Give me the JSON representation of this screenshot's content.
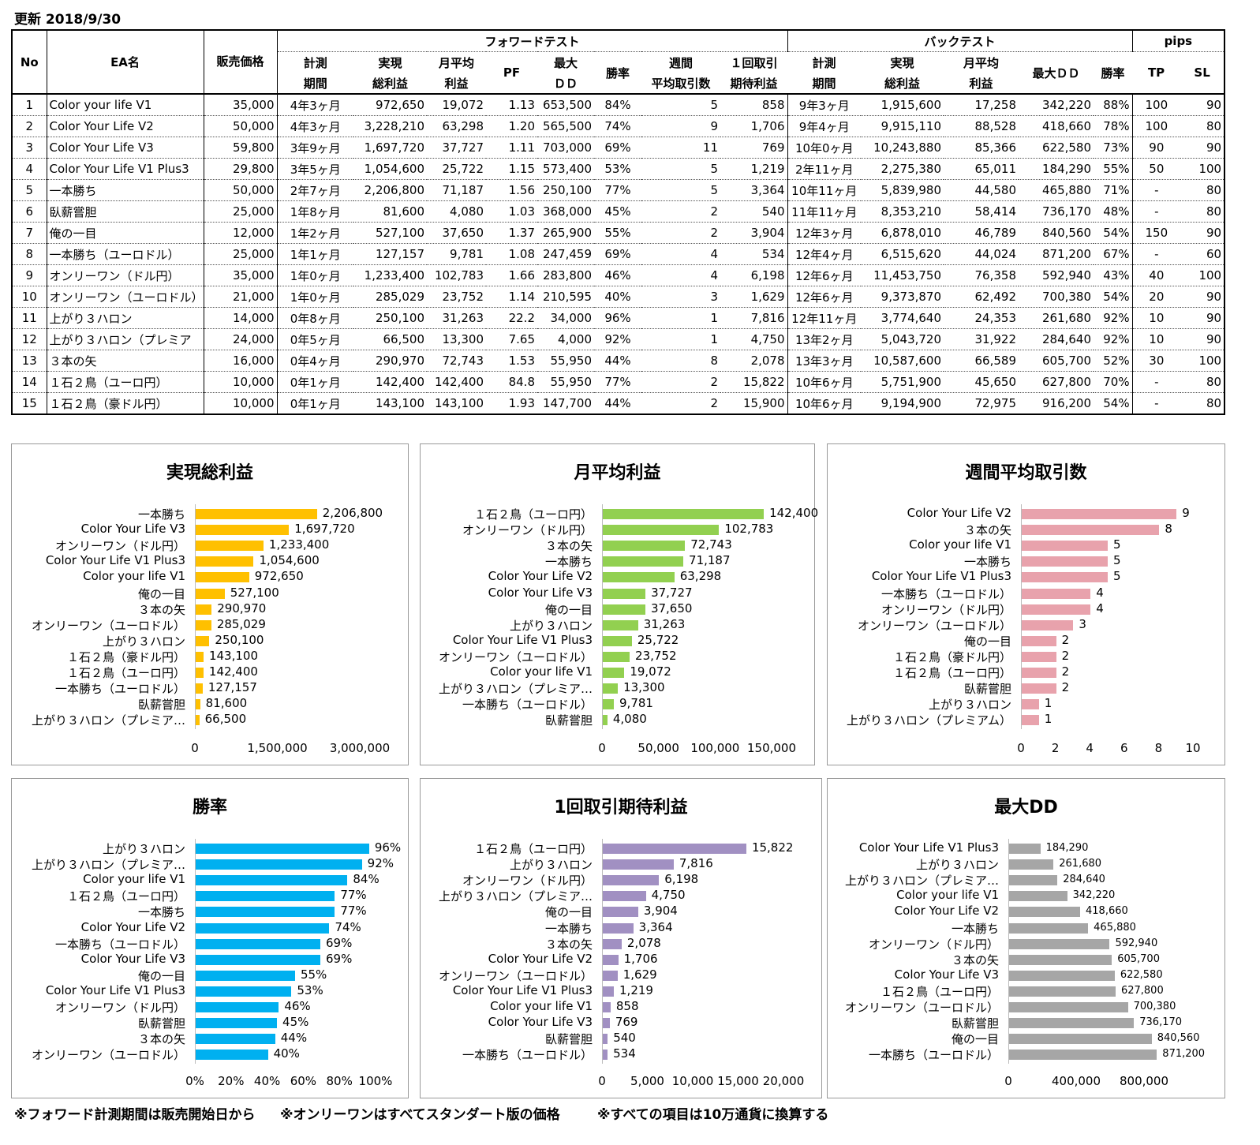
{
  "updated": "更新  2018/9/30",
  "table": {
    "group_headers": {
      "forward": "フォワードテスト",
      "back": "バックテスト",
      "pips": "pips"
    },
    "headers": {
      "no": "No",
      "ea": "EA名",
      "price": "販売価格",
      "f_period": [
        "計測",
        "期間"
      ],
      "f_total": [
        "実現",
        "総利益"
      ],
      "f_month": [
        "月平均",
        "利益"
      ],
      "f_pf": "PF",
      "f_dd": [
        "最大",
        "ＤＤ"
      ],
      "f_win": "勝率",
      "f_week": [
        "週間",
        "平均取引数"
      ],
      "f_exp": [
        "１回取引",
        "期待利益"
      ],
      "b_period": [
        "計測",
        "期間"
      ],
      "b_total": [
        "実現",
        "総利益"
      ],
      "b_month": [
        "月平均",
        "利益"
      ],
      "b_dd": "最大ＤＤ",
      "b_win": "勝率",
      "tp": "TP",
      "sl": "SL"
    },
    "rows": [
      [
        "1",
        "Color your life V1",
        "35,000",
        "4年3ヶ月",
        "972,650",
        "19,072",
        "1.13",
        "653,500",
        "84%",
        "5",
        "858",
        "9年3ヶ月",
        "1,915,600",
        "17,258",
        "342,220",
        "88%",
        "100",
        "90"
      ],
      [
        "2",
        "Color Your Life V2",
        "50,000",
        "4年3ヶ月",
        "3,228,210",
        "63,298",
        "1.20",
        "565,500",
        "74%",
        "9",
        "1,706",
        "9年4ヶ月",
        "9,915,110",
        "88,528",
        "418,660",
        "78%",
        "100",
        "80"
      ],
      [
        "3",
        "Color Your Life V3",
        "59,800",
        "3年9ヶ月",
        "1,697,720",
        "37,727",
        "1.11",
        "703,000",
        "69%",
        "11",
        "769",
        "10年0ヶ月",
        "10,243,880",
        "85,366",
        "622,580",
        "73%",
        "90",
        "90"
      ],
      [
        "4",
        "Color Your Life V1 Plus3",
        "29,800",
        "3年5ヶ月",
        "1,054,600",
        "25,722",
        "1.15",
        "573,400",
        "53%",
        "5",
        "1,219",
        "2年11ヶ月",
        "2,275,380",
        "65,011",
        "184,290",
        "55%",
        "50",
        "100"
      ],
      [
        "5",
        "一本勝ち",
        "50,000",
        "2年7ヶ月",
        "2,206,800",
        "71,187",
        "1.56",
        "250,100",
        "77%",
        "5",
        "3,364",
        "10年11ヶ月",
        "5,839,980",
        "44,580",
        "465,880",
        "71%",
        "-",
        "80"
      ],
      [
        "6",
        "臥薪嘗胆",
        "25,000",
        "1年8ヶ月",
        "81,600",
        "4,080",
        "1.03",
        "368,000",
        "45%",
        "2",
        "540",
        "11年11ヶ月",
        "8,353,210",
        "58,414",
        "736,170",
        "48%",
        "-",
        "80"
      ],
      [
        "7",
        "俺の一目",
        "12,000",
        "1年2ヶ月",
        "527,100",
        "37,650",
        "1.37",
        "265,900",
        "55%",
        "2",
        "3,904",
        "12年3ヶ月",
        "6,878,010",
        "46,789",
        "840,560",
        "54%",
        "150",
        "90"
      ],
      [
        "8",
        "一本勝ち（ユーロドル）",
        "25,000",
        "1年1ヶ月",
        "127,157",
        "9,781",
        "1.08",
        "247,459",
        "69%",
        "4",
        "534",
        "12年4ヶ月",
        "6,515,620",
        "44,024",
        "871,200",
        "67%",
        "-",
        "60"
      ],
      [
        "9",
        "オンリーワン（ドル円）",
        "35,000",
        "1年0ヶ月",
        "1,233,400",
        "102,783",
        "1.66",
        "283,800",
        "46%",
        "4",
        "6,198",
        "12年6ヶ月",
        "11,453,750",
        "76,358",
        "592,940",
        "43%",
        "40",
        "100"
      ],
      [
        "10",
        "オンリーワン（ユーロドル）",
        "21,000",
        "1年0ヶ月",
        "285,029",
        "23,752",
        "1.14",
        "210,595",
        "40%",
        "3",
        "1,629",
        "12年6ヶ月",
        "9,373,870",
        "62,492",
        "700,380",
        "54%",
        "20",
        "90"
      ],
      [
        "11",
        "上がり３ハロン",
        "14,000",
        "0年8ヶ月",
        "250,100",
        "31,263",
        "22.2",
        "34,000",
        "96%",
        "1",
        "7,816",
        "12年11ヶ月",
        "3,774,640",
        "24,353",
        "261,680",
        "92%",
        "10",
        "90"
      ],
      [
        "12",
        "上がり３ハロン（プレミア",
        "24,000",
        "0年5ヶ月",
        "66,500",
        "13,300",
        "7.65",
        "4,000",
        "92%",
        "1",
        "4,750",
        "13年2ヶ月",
        "5,043,720",
        "31,922",
        "284,640",
        "92%",
        "10",
        "90"
      ],
      [
        "13",
        "３本の矢",
        "16,000",
        "0年4ヶ月",
        "290,970",
        "72,743",
        "1.53",
        "55,950",
        "44%",
        "8",
        "2,078",
        "13年3ヶ月",
        "10,587,600",
        "66,589",
        "605,700",
        "52%",
        "30",
        "100"
      ],
      [
        "14",
        "１石２鳥（ユーロ円）",
        "10,000",
        "0年1ヶ月",
        "142,400",
        "142,400",
        "84.8",
        "55,950",
        "77%",
        "2",
        "15,822",
        "10年6ヶ月",
        "5,751,900",
        "45,650",
        "627,800",
        "70%",
        "-",
        "80"
      ],
      [
        "15",
        "１石２鳥（豪ドル円）",
        "10,000",
        "0年1ヶ月",
        "143,100",
        "143,100",
        "1.93",
        "147,700",
        "44%",
        "2",
        "15,900",
        "10年6ヶ月",
        "9,194,900",
        "72,975",
        "916,200",
        "54%",
        "-",
        "80"
      ]
    ]
  },
  "chart_data": [
    {
      "type": "bar",
      "orientation": "horizontal",
      "title": "実現総利益",
      "color": "#FFC000",
      "xlim": [
        0,
        3000000
      ],
      "ticks": [
        "0",
        "1,500,000",
        "3,000,000"
      ],
      "categories": [
        "一本勝ち",
        "Color Your Life V3",
        "オンリーワン（ドル円）",
        "Color Your Life V1 Plus3",
        "Color your life V1",
        "俺の一目",
        "３本の矢",
        "オンリーワン（ユーロドル）",
        "上がり３ハロン",
        "１石２鳥（豪ドル円）",
        "１石２鳥（ユーロ円）",
        "一本勝ち（ユーロドル）",
        "臥薪嘗胆",
        "上がり３ハロン（プレミア…"
      ],
      "values": [
        2206800,
        1697720,
        1233400,
        1054600,
        972650,
        527100,
        290970,
        285029,
        250100,
        143100,
        142400,
        127157,
        81600,
        66500
      ],
      "labels": [
        "2,206,800",
        "1,697,720",
        "1,233,400",
        "1,054,600",
        "972,650",
        "527,100",
        "290,970",
        "285,029",
        "250,100",
        "143,100",
        "142,400",
        "127,157",
        "81,600",
        "66,500"
      ]
    },
    {
      "type": "bar",
      "orientation": "horizontal",
      "title": "月平均利益",
      "color": "#92D050",
      "xlim": [
        0,
        150000
      ],
      "ticks": [
        "0",
        "50,000",
        "100,000",
        "150,000"
      ],
      "categories": [
        "１石２鳥（ユーロ円）",
        "オンリーワン（ドル円）",
        "３本の矢",
        "一本勝ち",
        "Color Your Life V2",
        "Color Your Life V3",
        "俺の一目",
        "上がり３ハロン",
        "Color Your Life V1 Plus3",
        "オンリーワン（ユーロドル）",
        "Color your life V1",
        "上がり３ハロン（プレミア…",
        "一本勝ち（ユーロドル）",
        "臥薪嘗胆"
      ],
      "values": [
        142400,
        102783,
        72743,
        71187,
        63298,
        37727,
        37650,
        31263,
        25722,
        23752,
        19072,
        13300,
        9781,
        4080
      ],
      "labels": [
        "142,400",
        "102,783",
        "72,743",
        "71,187",
        "63,298",
        "37,727",
        "37,650",
        "31,263",
        "25,722",
        "23,752",
        "19,072",
        "13,300",
        "9,781",
        "4,080"
      ]
    },
    {
      "type": "bar",
      "orientation": "horizontal",
      "title": "週間平均取引数",
      "color": "#E8A2AC",
      "xlim": [
        0,
        10
      ],
      "ticks": [
        "0",
        "2",
        "4",
        "6",
        "8",
        "10"
      ],
      "categories": [
        "Color Your Life V2",
        "３本の矢",
        "Color your life V1",
        "一本勝ち",
        "Color Your Life V1 Plus3",
        "一本勝ち（ユーロドル）",
        "オンリーワン（ドル円）",
        "オンリーワン（ユーロドル）",
        "俺の一目",
        "１石２鳥（豪ドル円）",
        "１石２鳥（ユーロ円）",
        "臥薪嘗胆",
        "上がり３ハロン",
        "上がり３ハロン（プレミアム）"
      ],
      "values": [
        9,
        8,
        5,
        5,
        5,
        4,
        4,
        3,
        2,
        2,
        2,
        2,
        1,
        1
      ],
      "labels": [
        "9",
        "8",
        "5",
        "5",
        "5",
        "4",
        "4",
        "3",
        "2",
        "2",
        "2",
        "2",
        "1",
        "1"
      ]
    },
    {
      "type": "bar",
      "orientation": "horizontal",
      "title": "勝率",
      "color": "#00B0F0",
      "xlim": [
        0,
        100
      ],
      "ticks": [
        "0%",
        "20%",
        "40%",
        "60%",
        "80%",
        "100%"
      ],
      "categories": [
        "上がり３ハロン",
        "上がり３ハロン（プレミア…",
        "Color your life V1",
        "１石２鳥（ユーロ円）",
        "一本勝ち",
        "Color Your Life V2",
        "一本勝ち（ユーロドル）",
        "Color Your Life V3",
        "俺の一目",
        "Color Your Life V1 Plus3",
        "オンリーワン（ドル円）",
        "臥薪嘗胆",
        "３本の矢",
        "オンリーワン（ユーロドル）"
      ],
      "values": [
        96,
        92,
        84,
        77,
        77,
        74,
        69,
        69,
        55,
        53,
        46,
        45,
        44,
        40
      ],
      "labels": [
        "96%",
        "92%",
        "84%",
        "77%",
        "77%",
        "74%",
        "69%",
        "69%",
        "55%",
        "53%",
        "46%",
        "45%",
        "44%",
        "40%"
      ]
    },
    {
      "type": "bar",
      "orientation": "horizontal",
      "title": "1回取引期待利益",
      "color": "#A190C2",
      "xlim": [
        0,
        20000
      ],
      "ticks": [
        "0",
        "5,000",
        "10,000",
        "15,000",
        "20,000"
      ],
      "categories": [
        "１石２鳥（ユーロ円）",
        "上がり３ハロン",
        "オンリーワン（ドル円）",
        "上がり３ハロン（プレミア…",
        "俺の一目",
        "一本勝ち",
        "３本の矢",
        "Color Your Life V2",
        "オンリーワン（ユーロドル）",
        "Color Your Life V1 Plus3",
        "Color your life V1",
        "Color Your Life V3",
        "臥薪嘗胆",
        "一本勝ち（ユーロドル）"
      ],
      "values": [
        15822,
        7816,
        6198,
        4750,
        3904,
        3364,
        2078,
        1706,
        1629,
        1219,
        858,
        769,
        540,
        534
      ],
      "labels": [
        "15,822",
        "7,816",
        "6,198",
        "4,750",
        "3,904",
        "3,364",
        "2,078",
        "1,706",
        "1,629",
        "1,219",
        "858",
        "769",
        "540",
        "534"
      ]
    },
    {
      "type": "bar",
      "orientation": "horizontal",
      "title": "最大DD",
      "color": "#A6A6A6",
      "xlim": [
        0,
        1000000
      ],
      "ticks": [
        "0",
        "400,000",
        "800,000"
      ],
      "categories": [
        "Color Your Life V1 Plus3",
        "上がり３ハロン",
        "上がり３ハロン（プレミア…",
        "Color your life V1",
        "Color Your Life V2",
        "一本勝ち",
        "オンリーワン（ドル円）",
        "３本の矢",
        "Color Your Life V3",
        "１石２鳥（ユーロ円）",
        "オンリーワン（ユーロドル）",
        "臥薪嘗胆",
        "俺の一目",
        "一本勝ち（ユーロドル）"
      ],
      "values": [
        184290,
        261680,
        284640,
        342220,
        418660,
        465880,
        592940,
        605700,
        622580,
        627800,
        700380,
        736170,
        840560,
        871200
      ],
      "labels": [
        "184,290",
        "261,680",
        "284,640",
        "342,220",
        "418,660",
        "465,880",
        "592,940",
        "605,700",
        "622,580",
        "627,800",
        "700,380",
        "736,170",
        "840,560",
        "871,200"
      ]
    }
  ],
  "notes": [
    "※フォワード計測期間は販売開始日から",
    "※オンリーワンはすべてスタンダート版の価格",
    "※すべての項目は10万通貨に換算する"
  ]
}
